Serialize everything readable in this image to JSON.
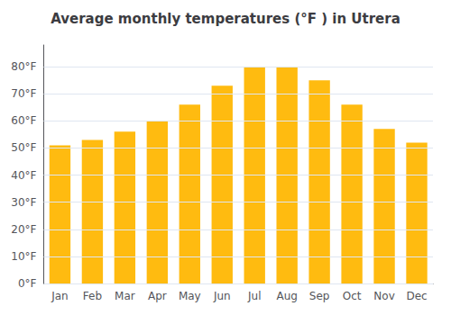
{
  "chart_data": {
    "type": "bar",
    "title": "Average monthly temperatures (°F ) in Utrera",
    "categories": [
      "Jan",
      "Feb",
      "Mar",
      "Apr",
      "May",
      "Jun",
      "Jul",
      "Aug",
      "Sep",
      "Oct",
      "Nov",
      "Dec"
    ],
    "values": [
      51,
      53,
      56,
      60,
      66,
      73,
      80,
      80,
      75,
      66,
      57,
      52
    ],
    "color": "#FFBB10",
    "ylim": [
      0,
      88
    ],
    "yticks": [
      {
        "value": 0,
        "label": "0°F"
      },
      {
        "value": 10,
        "label": "10°F"
      },
      {
        "value": 20,
        "label": "20°F"
      },
      {
        "value": 30,
        "label": "30°F"
      },
      {
        "value": 40,
        "label": "40°F"
      },
      {
        "value": 50,
        "label": "50°F"
      },
      {
        "value": 60,
        "label": "60°F"
      },
      {
        "value": 70,
        "label": "70°F"
      },
      {
        "value": 80,
        "label": "80°F"
      }
    ],
    "grid": true
  }
}
